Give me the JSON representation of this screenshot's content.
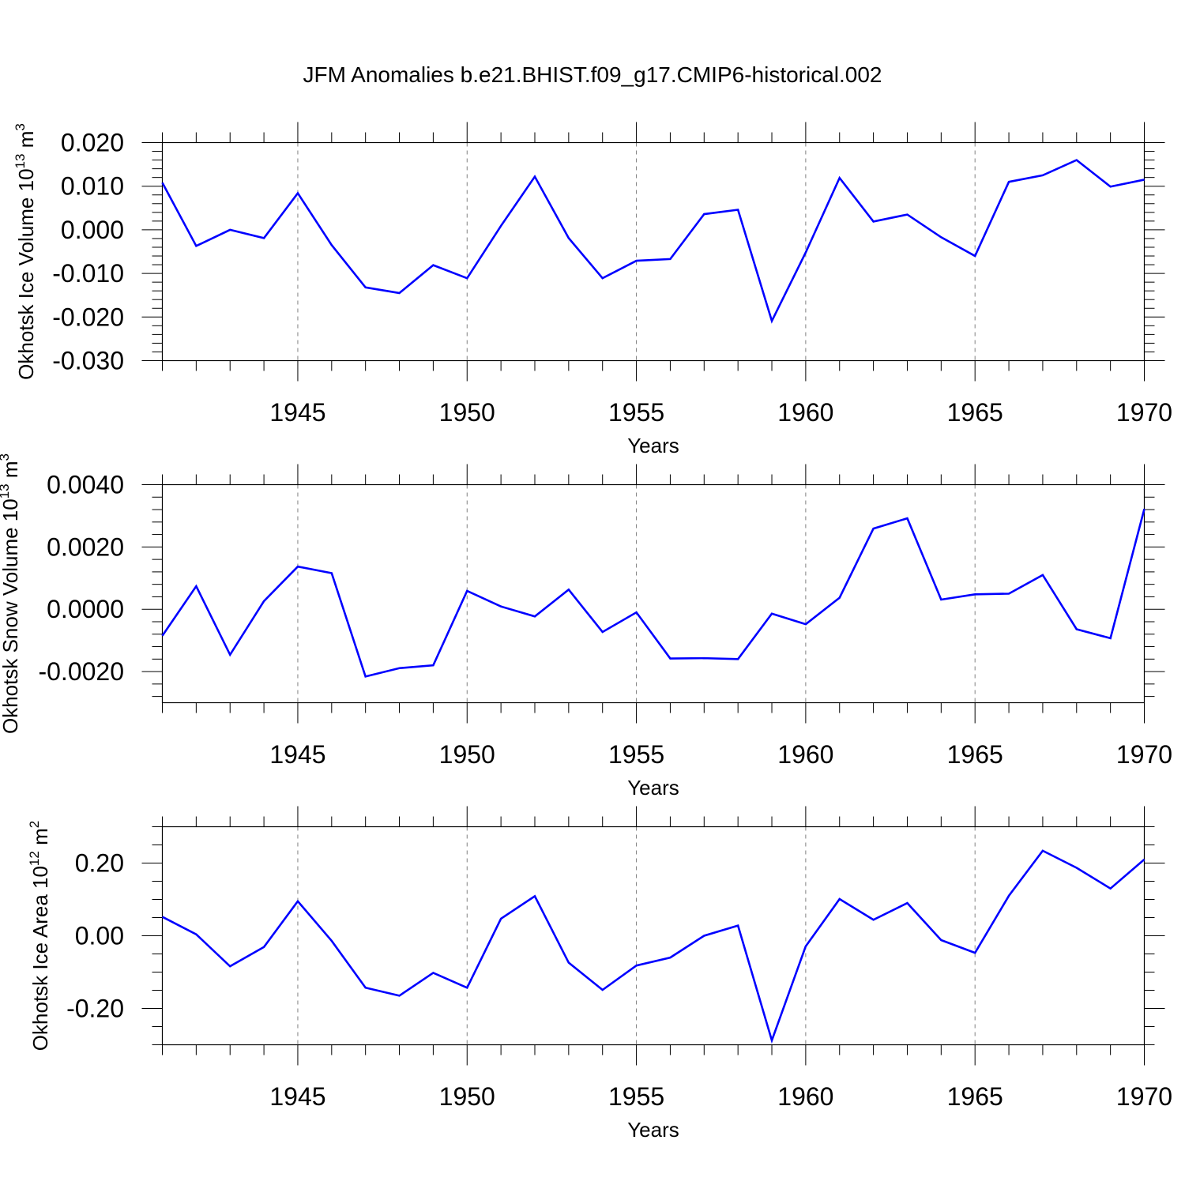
{
  "title": "JFM Anomalies b.e21.BHIST.f09_g17.CMIP6-historical.002",
  "colors": {
    "line": "#0000ff",
    "axis": "#000000",
    "grid": "#808080"
  },
  "chart_data": [
    {
      "type": "line",
      "ylabel_main": "Okhotsk Ice Volume 10",
      "ylabel_exp": "13",
      "ylabel_unit": " m",
      "ylabel_unit_exp": "3",
      "xlabel": "Years",
      "xlim": [
        1941,
        1970
      ],
      "ylim": [
        -0.03,
        0.02
      ],
      "yticks": [
        -0.03,
        -0.02,
        -0.01,
        0.0,
        0.01,
        0.02
      ],
      "ytick_labels": [
        "-0.030",
        "-0.020",
        "-0.010",
        "0.000",
        "0.010",
        "0.020"
      ],
      "yminor_step": 0.002,
      "xticks": [
        1945,
        1950,
        1955,
        1960,
        1965,
        1970
      ],
      "xtick_labels": [
        "1945",
        "1950",
        "1955",
        "1960",
        "1965",
        "1970"
      ],
      "series": [
        {
          "name": "Okhotsk Ice Volume",
          "x": [
            1941,
            1942,
            1943,
            1944,
            1945,
            1946,
            1947,
            1948,
            1949,
            1950,
            1951,
            1952,
            1953,
            1954,
            1955,
            1956,
            1957,
            1958,
            1959,
            1960,
            1961,
            1962,
            1963,
            1964,
            1965,
            1966,
            1967,
            1968,
            1969,
            1970
          ],
          "values": [
            0.0108,
            -0.0037,
            0.0,
            -0.0019,
            0.0084,
            -0.0035,
            -0.0132,
            -0.0145,
            -0.0081,
            -0.0111,
            0.0009,
            0.0122,
            -0.0019,
            -0.0111,
            -0.0071,
            -0.0067,
            0.0036,
            0.0046,
            -0.0209,
            -0.0052,
            0.0119,
            0.0019,
            0.0035,
            -0.0017,
            -0.006,
            0.011,
            0.0125,
            0.016,
            0.0099,
            0.0115
          ]
        }
      ]
    },
    {
      "type": "line",
      "ylabel_main": "Okhotsk Snow Volume 10",
      "ylabel_exp": "13",
      "ylabel_unit": " m",
      "ylabel_unit_exp": "3",
      "xlabel": "Years",
      "xlim": [
        1941,
        1970
      ],
      "ylim": [
        -0.003,
        0.004
      ],
      "yticks": [
        -0.002,
        0.0,
        0.002,
        0.004
      ],
      "ytick_labels": [
        "-0.0020",
        "0.0000",
        "0.0020",
        "0.0040"
      ],
      "yminor_step": 0.0004,
      "xticks": [
        1945,
        1950,
        1955,
        1960,
        1965,
        1970
      ],
      "xtick_labels": [
        "1945",
        "1950",
        "1955",
        "1960",
        "1965",
        "1970"
      ],
      "series": [
        {
          "name": "Okhotsk Snow Volume",
          "x": [
            1941,
            1942,
            1943,
            1944,
            1945,
            1946,
            1947,
            1948,
            1949,
            1950,
            1951,
            1952,
            1953,
            1954,
            1955,
            1956,
            1957,
            1958,
            1959,
            1960,
            1961,
            1962,
            1963,
            1964,
            1965,
            1966,
            1967,
            1968,
            1969,
            1970
          ],
          "values": [
            -0.00085,
            0.00074,
            -0.00146,
            0.00026,
            0.00137,
            0.00116,
            -0.00216,
            -0.00189,
            -0.0018,
            0.00059,
            9e-05,
            -0.00023,
            0.00063,
            -0.00073,
            -0.0001,
            -0.00158,
            -0.00157,
            -0.0016,
            -0.00014,
            -0.00048,
            0.00037,
            0.00259,
            0.00292,
            0.00031,
            0.00048,
            0.0005,
            0.0011,
            -0.00064,
            -0.00093,
            0.00322
          ]
        }
      ]
    },
    {
      "type": "line",
      "ylabel_main": "Okhotsk Ice Area 10",
      "ylabel_exp": "12",
      "ylabel_unit": " m",
      "ylabel_unit_exp": "2",
      "xlabel": "Years",
      "xlim": [
        1941,
        1970
      ],
      "ylim": [
        -0.3,
        0.3
      ],
      "yticks": [
        -0.2,
        0.0,
        0.2
      ],
      "ytick_labels": [
        "-0.20",
        "0.00",
        "0.20"
      ],
      "yminor_step": 0.05,
      "xticks": [
        1945,
        1950,
        1955,
        1960,
        1965,
        1970
      ],
      "xtick_labels": [
        "1945",
        "1950",
        "1955",
        "1960",
        "1965",
        "1970"
      ],
      "series": [
        {
          "name": "Okhotsk Ice Area",
          "x": [
            1941,
            1942,
            1943,
            1944,
            1945,
            1946,
            1947,
            1948,
            1949,
            1950,
            1951,
            1952,
            1953,
            1954,
            1955,
            1956,
            1957,
            1958,
            1959,
            1960,
            1961,
            1962,
            1963,
            1964,
            1965,
            1966,
            1967,
            1968,
            1969,
            1970
          ],
          "values": [
            0.052,
            0.004,
            -0.084,
            -0.031,
            0.095,
            -0.014,
            -0.143,
            -0.165,
            -0.102,
            -0.143,
            0.047,
            0.109,
            -0.074,
            -0.149,
            -0.082,
            -0.06,
            0.0,
            0.028,
            -0.288,
            -0.029,
            0.101,
            0.044,
            0.09,
            -0.012,
            -0.047,
            0.11,
            0.234,
            0.187,
            0.13,
            0.21
          ]
        }
      ]
    }
  ]
}
